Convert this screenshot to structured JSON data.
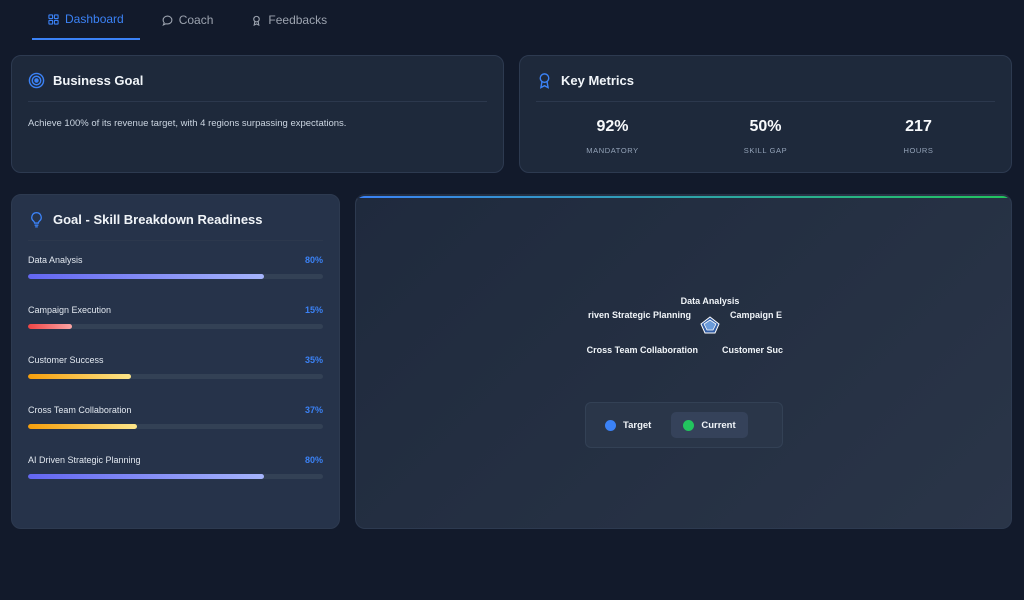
{
  "nav": {
    "tabs": [
      {
        "label": "Dashboard",
        "icon": "dashboard-grid-icon",
        "active": true
      },
      {
        "label": "Coach",
        "icon": "chat-bubble-icon",
        "active": false
      },
      {
        "label": "Feedbacks",
        "icon": "award-icon",
        "active": false
      }
    ]
  },
  "business_goal": {
    "title": "Business Goal",
    "icon": "target-icon",
    "text": "Achieve 100% of its revenue target, with 4 regions surpassing expectations."
  },
  "key_metrics": {
    "title": "Key Metrics",
    "icon": "ribbon-award-icon",
    "items": [
      {
        "value": "92%",
        "label": "MANDATORY"
      },
      {
        "value": "50%",
        "label": "SKILL GAP"
      },
      {
        "value": "217",
        "label": "HOURS"
      }
    ]
  },
  "skills": {
    "title": "Goal - Skill Breakdown Readiness",
    "icon": "lightbulb-icon",
    "items": [
      {
        "name": "Data Analysis",
        "pct_label": "80%",
        "value": 80,
        "color_from": "#6366f1",
        "color_to": "#a5b4fc"
      },
      {
        "name": "Campaign Execution",
        "pct_label": "15%",
        "value": 15,
        "color_from": "#ef4444",
        "color_to": "#fca5a5"
      },
      {
        "name": "Customer Success",
        "pct_label": "35%",
        "value": 35,
        "color_from": "#f59e0b",
        "color_to": "#fde68a"
      },
      {
        "name": "Cross Team Collaboration",
        "pct_label": "37%",
        "value": 37,
        "color_from": "#f59e0b",
        "color_to": "#fde68a"
      },
      {
        "name": "AI Driven Strategic Planning",
        "pct_label": "80%",
        "value": 80,
        "color_from": "#6366f1",
        "color_to": "#a5b4fc"
      }
    ]
  },
  "radar": {
    "axis_labels": [
      "Data Analysis",
      "riven Strategic Planning",
      "Campaign E",
      "Cross Team Collaboration",
      "Customer Suc"
    ],
    "legend": [
      {
        "label": "Target",
        "color": "#3b82f6",
        "active": false
      },
      {
        "label": "Current",
        "color": "#22c55e",
        "active": true
      }
    ]
  },
  "colors": {
    "accent": "#3b82f6",
    "background": "#121a2b",
    "card": "#1e293b"
  }
}
